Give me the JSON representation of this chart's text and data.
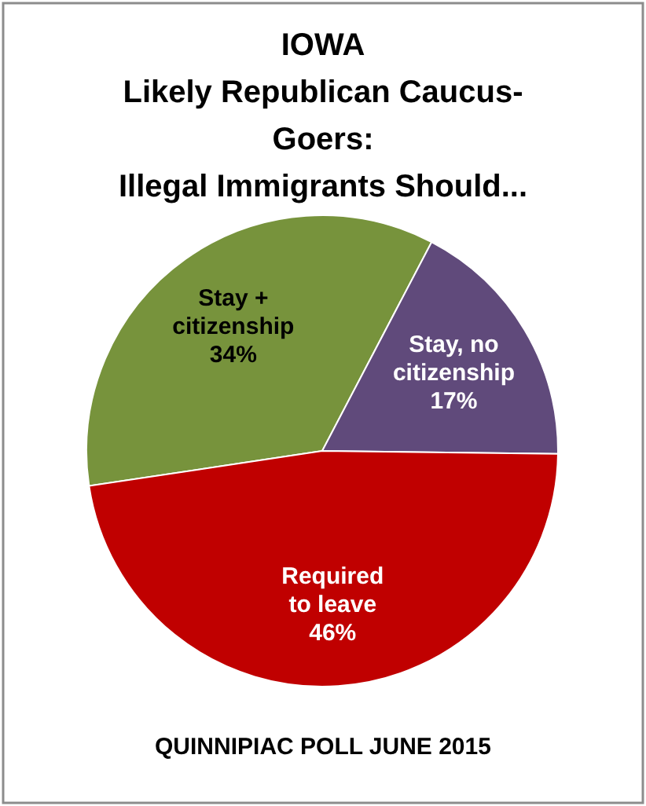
{
  "chart_data": {
    "type": "pie",
    "title": "IOWA\nLikely Republican Caucus-\nGoers:\nIllegal Immigrants Should...",
    "categories": [
      "Stay + citizenship",
      "Stay, no citizenship",
      "Required to leave"
    ],
    "values": [
      34,
      17,
      46
    ],
    "colors": [
      "#77933c",
      "#604a7b",
      "#c00000"
    ],
    "value_labels": [
      "34%",
      "17%",
      "46%"
    ],
    "annotations": [
      "QUINNIPIAC POLL JUNE 2015"
    ]
  }
}
